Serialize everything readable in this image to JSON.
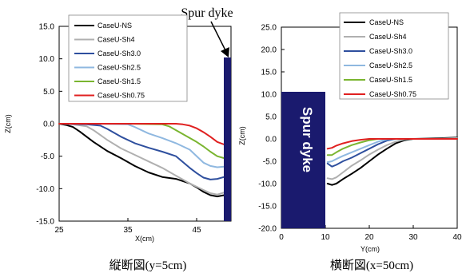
{
  "colors": {
    "dyke": "#1a1a6e",
    "NS": "#000000",
    "Sh4": "#b0b0b0",
    "Sh3": "#2e4f9e",
    "Sh25": "#8fb8e0",
    "Sh15": "#7ab530",
    "Sh075": "#e02020"
  },
  "chart_data": [
    {
      "type": "line",
      "caption": "縦断図(y=5cm)",
      "ylabel": "Z(cm)",
      "xlabel": "X(cm)",
      "xlim": [
        25,
        50
      ],
      "ylim": [
        -15,
        15
      ],
      "x_ticks": [
        "25",
        "35",
        "45"
      ],
      "y_ticks": [
        "15.0",
        "10.0",
        "5.0",
        "0.0",
        "-5.0",
        "-10.0",
        "-15.0"
      ],
      "annotation": "Spur dyke",
      "legend": [
        "CaseU-NS",
        "CaseU-Sh4",
        "CaseU-Sh3.0",
        "CaseU-Sh2.5",
        "CaseU-Sh1.5",
        "CaseU-Sh0.75"
      ],
      "series": [
        {
          "name": "CaseU-NS",
          "color": "#000000",
          "x": [
            25,
            26,
            27,
            28,
            29,
            30,
            32,
            34,
            36,
            38,
            40,
            42,
            44,
            45,
            46,
            47,
            48,
            49,
            49.5
          ],
          "y": [
            0,
            -0.2,
            -0.5,
            -1.2,
            -2.0,
            -2.8,
            -4.2,
            -5.3,
            -6.5,
            -7.5,
            -8.2,
            -8.5,
            -9.2,
            -9.8,
            -10.5,
            -11.0,
            -11.2,
            -11.0,
            -10.8
          ]
        },
        {
          "name": "CaseU-Sh4",
          "color": "#b0b0b0",
          "x": [
            25,
            27,
            29,
            30,
            32,
            34,
            36,
            38,
            40,
            42,
            44,
            46,
            47,
            48,
            49,
            49.5
          ],
          "y": [
            0,
            -0.1,
            -0.4,
            -1.0,
            -2.5,
            -3.8,
            -4.8,
            -5.8,
            -6.8,
            -8.0,
            -9.2,
            -10.2,
            -10.7,
            -10.9,
            -10.6,
            -10.4
          ]
        },
        {
          "name": "CaseU-Sh3.0",
          "color": "#2e4f9e",
          "x": [
            25,
            29,
            31,
            32,
            34,
            36,
            38,
            40,
            42,
            44,
            45,
            46,
            47,
            48,
            49,
            49.5
          ],
          "y": [
            0,
            -0.1,
            -0.3,
            -0.8,
            -2.0,
            -3.0,
            -3.7,
            -4.3,
            -5.0,
            -6.8,
            -7.6,
            -8.3,
            -8.6,
            -8.5,
            -8.2,
            -8.0
          ]
        },
        {
          "name": "CaseU-Sh2.5",
          "color": "#8fb8e0",
          "x": [
            25,
            30,
            35,
            36,
            38,
            40,
            42,
            44,
            46,
            47,
            48,
            49,
            49.5
          ],
          "y": [
            0,
            0,
            -0.1,
            -0.5,
            -1.5,
            -2.2,
            -3.0,
            -4.0,
            -6.0,
            -6.5,
            -6.7,
            -6.6,
            -6.5
          ]
        },
        {
          "name": "CaseU-Sh1.5",
          "color": "#7ab530",
          "x": [
            25,
            30,
            35,
            40,
            41,
            42,
            43,
            44,
            45,
            46,
            47,
            48,
            49,
            49.5
          ],
          "y": [
            0,
            0,
            0,
            -0.1,
            -0.4,
            -1.0,
            -1.6,
            -2.2,
            -2.8,
            -3.5,
            -4.3,
            -5.0,
            -5.3,
            -5.2
          ]
        },
        {
          "name": "CaseU-Sh0.75",
          "color": "#e02020",
          "x": [
            25,
            30,
            35,
            40,
            42,
            43,
            44,
            45,
            46,
            47,
            48,
            49,
            49.5
          ],
          "y": [
            0,
            0,
            0,
            0,
            0,
            -0.1,
            -0.3,
            -0.7,
            -1.3,
            -2.0,
            -2.8,
            -3.2,
            -3.0
          ]
        }
      ]
    },
    {
      "type": "line",
      "caption": "横断図(x=50cm)",
      "ylabel": "Z(cm)",
      "xlabel": "Y(cm)",
      "xlim": [
        0,
        40
      ],
      "ylim": [
        -20,
        25
      ],
      "x_ticks": [
        "0",
        "10",
        "20",
        "30",
        "40"
      ],
      "y_ticks": [
        "25.0",
        "20.0",
        "15.0",
        "10.0",
        "5.0",
        "0.0",
        "-5.0",
        "-10.0",
        "-15.0",
        "-20.0"
      ],
      "annotation": "Spur dyke",
      "legend": [
        "CaseU-NS",
        "CaseU-Sh4",
        "CaseU-Sh3.0",
        "CaseU-Sh2.5",
        "CaseU-Sh1.5",
        "CaseU-Sh0.75"
      ],
      "series": [
        {
          "name": "CaseU-NS",
          "color": "#000000",
          "x": [
            10.5,
            11.5,
            12.5,
            14,
            16,
            18,
            20,
            22,
            24,
            26,
            28,
            30,
            35,
            40
          ],
          "y": [
            -10.0,
            -10.3,
            -10.0,
            -9.0,
            -7.8,
            -6.5,
            -5.0,
            -3.5,
            -2.2,
            -1.0,
            -0.3,
            0,
            0.1,
            0.3
          ]
        },
        {
          "name": "CaseU-Sh4",
          "color": "#b0b0b0",
          "x": [
            10.5,
            11.5,
            12.5,
            14,
            16,
            18,
            20,
            22,
            24,
            26,
            28,
            30,
            35,
            40
          ],
          "y": [
            -8.8,
            -9.0,
            -8.6,
            -7.5,
            -6.0,
            -4.8,
            -3.5,
            -2.4,
            -1.4,
            -0.6,
            -0.1,
            0,
            0,
            0.2
          ]
        },
        {
          "name": "CaseU-Sh3.0",
          "color": "#2e4f9e",
          "x": [
            10.5,
            11.5,
            12.5,
            14,
            16,
            18,
            20,
            22,
            24,
            26,
            28,
            30,
            35,
            40
          ],
          "y": [
            -5.5,
            -6.2,
            -5.8,
            -5.0,
            -4.2,
            -3.2,
            -2.2,
            -1.2,
            -0.4,
            0,
            0,
            0,
            0,
            0
          ]
        },
        {
          "name": "CaseU-Sh2.5",
          "color": "#8fb8e0",
          "x": [
            10.5,
            11.5,
            12.5,
            14,
            16,
            18,
            20,
            22,
            24,
            26,
            28,
            30,
            35,
            40
          ],
          "y": [
            -5.2,
            -5.0,
            -4.5,
            -3.8,
            -3.0,
            -2.2,
            -1.4,
            -0.6,
            -0.1,
            0,
            0,
            0,
            0,
            0
          ]
        },
        {
          "name": "CaseU-Sh1.5",
          "color": "#7ab530",
          "x": [
            10.5,
            11.5,
            12.5,
            14,
            16,
            18,
            20,
            22,
            24,
            26,
            28,
            30,
            35,
            40
          ],
          "y": [
            -3.6,
            -3.6,
            -3.0,
            -2.2,
            -1.4,
            -0.8,
            -0.3,
            0,
            0,
            0,
            0,
            0,
            0,
            0
          ]
        },
        {
          "name": "CaseU-Sh0.75",
          "color": "#e02020",
          "x": [
            10.5,
            11.5,
            12.5,
            14,
            16,
            18,
            20,
            22,
            24,
            26,
            28,
            30,
            35,
            40
          ],
          "y": [
            -2.2,
            -2.0,
            -1.5,
            -1.0,
            -0.5,
            -0.2,
            0,
            0,
            0,
            0,
            0,
            0,
            0,
            0
          ]
        }
      ]
    }
  ]
}
